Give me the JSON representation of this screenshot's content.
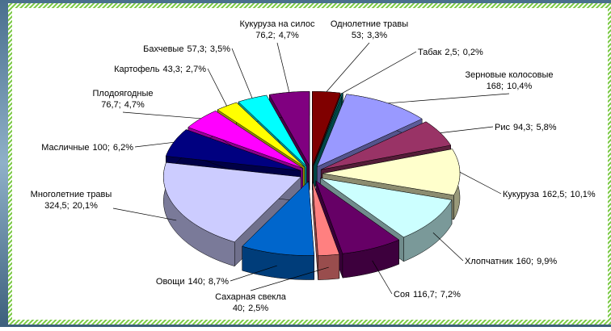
{
  "chart_data": {
    "type": "pie3d",
    "categories": [
      "Однолетние травы",
      "Табак",
      "Зерновые колосовые",
      "Рис",
      "Кукуруза",
      "Хлопчатник",
      "Соя",
      "Сахарная свекла",
      "Овощи",
      "Многолетние травы",
      "Масличные",
      "Плодоягодные",
      "Картофель",
      "Бахчевые",
      "Кукуруза на силос"
    ],
    "values": [
      53,
      2.5,
      168,
      94.3,
      162.5,
      160,
      116.7,
      40,
      140,
      324.5,
      100,
      76.7,
      43.3,
      57.3,
      76.2
    ],
    "value_labels": [
      "53;",
      "2,5;",
      "168;",
      "94,3;",
      "162,5;",
      "160;",
      "116,7;",
      "40;",
      "140;",
      "324,5;",
      "100;",
      "76,7;",
      "43,3;",
      "57,3;",
      "76,2;"
    ],
    "percents": [
      3.3,
      0.2,
      10.4,
      5.8,
      10.1,
      9.9,
      7.2,
      2.5,
      8.7,
      20.1,
      6.2,
      4.7,
      2.7,
      3.5,
      4.7
    ],
    "percent_labels": [
      "3,3%",
      "0,2%",
      "10,4%",
      "5,8%",
      "10,1%",
      "9,9%",
      "7,2%",
      "2,5%",
      "8,7%",
      "20,1%",
      "6,2%",
      "4,7%",
      "2,7%",
      "3,5%",
      "4,7%"
    ],
    "colors": [
      "#800000",
      "#008080",
      "#9999ff",
      "#993366",
      "#ffffcc",
      "#ccffff",
      "#660066",
      "#ff8080",
      "#0066cc",
      "#ccccff",
      "#000080",
      "#ff00ff",
      "#ffff00",
      "#00ffff",
      "#800080"
    ]
  }
}
